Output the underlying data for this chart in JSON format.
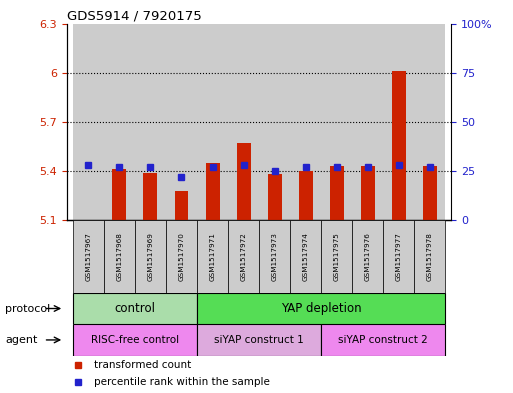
{
  "title": "GDS5914 / 7920175",
  "samples": [
    "GSM1517967",
    "GSM1517968",
    "GSM1517969",
    "GSM1517970",
    "GSM1517971",
    "GSM1517972",
    "GSM1517973",
    "GSM1517974",
    "GSM1517975",
    "GSM1517976",
    "GSM1517977",
    "GSM1517978"
  ],
  "transformed_counts": [
    5.1,
    5.41,
    5.39,
    5.28,
    5.45,
    5.57,
    5.38,
    5.4,
    5.43,
    5.43,
    6.01,
    5.43
  ],
  "percentile_ranks": [
    28,
    27,
    27,
    22,
    27,
    28,
    25,
    27,
    27,
    27,
    28,
    27
  ],
  "bar_bottom": 5.1,
  "ylim_left": [
    5.1,
    6.3
  ],
  "ylim_right": [
    0,
    100
  ],
  "yticks_left": [
    5.1,
    5.4,
    5.7,
    6.0,
    6.3
  ],
  "ytick_labels_left": [
    "5.1",
    "5.4",
    "5.7",
    "6",
    "6.3"
  ],
  "yticks_right": [
    0,
    25,
    50,
    75,
    100
  ],
  "ytick_labels_right": [
    "0",
    "25",
    "50",
    "75",
    "100%"
  ],
  "hlines": [
    5.4,
    5.7,
    6.0
  ],
  "bar_color": "#cc2200",
  "percentile_color": "#2222cc",
  "bg_color": "#cccccc",
  "plot_bg": "#ffffff",
  "protocol_groups": [
    {
      "label": "control",
      "start": 0,
      "end": 4,
      "color": "#aaddaa"
    },
    {
      "label": "YAP depletion",
      "start": 4,
      "end": 12,
      "color": "#55dd55"
    }
  ],
  "agent_groups": [
    {
      "label": "RISC-free control",
      "start": 0,
      "end": 4,
      "color": "#ee88ee"
    },
    {
      "label": "siYAP construct 1",
      "start": 4,
      "end": 8,
      "color": "#ddaadd"
    },
    {
      "label": "siYAP construct 2",
      "start": 8,
      "end": 12,
      "color": "#ee88ee"
    }
  ],
  "legend_items": [
    {
      "label": "transformed count",
      "color": "#cc2200"
    },
    {
      "label": "percentile rank within the sample",
      "color": "#2222cc"
    }
  ],
  "left_label_color": "#cc2200",
  "right_label_color": "#2222cc"
}
